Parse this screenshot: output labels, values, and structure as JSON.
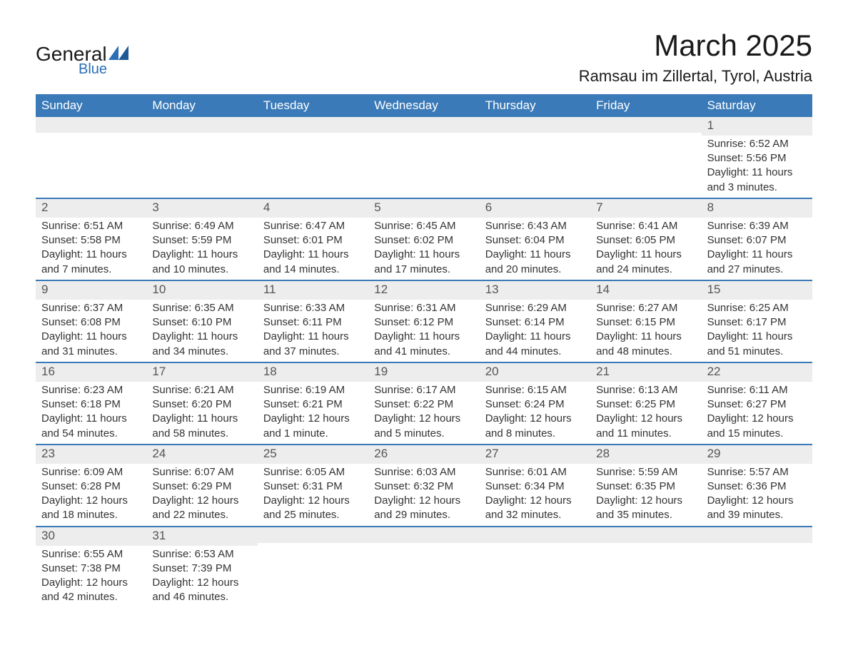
{
  "brand": {
    "word1": "General",
    "word2": "Blue",
    "icon_color": "#2a6fb5",
    "text_color": "#1a1a1a"
  },
  "title": "March 2025",
  "location": "Ramsau im Zillertal, Tyrol, Austria",
  "colors": {
    "header_bg": "#3a7ab8",
    "header_text": "#ffffff",
    "daynum_bg": "#ededed",
    "daynum_text": "#555555",
    "body_text": "#333333",
    "border": "#3a7ab8",
    "page_bg": "#ffffff"
  },
  "typography": {
    "title_fontsize": 42,
    "location_fontsize": 22,
    "header_fontsize": 17,
    "daynum_fontsize": 17,
    "cell_fontsize": 15
  },
  "day_names": [
    "Sunday",
    "Monday",
    "Tuesday",
    "Wednesday",
    "Thursday",
    "Friday",
    "Saturday"
  ],
  "weeks": [
    [
      {
        "day": ""
      },
      {
        "day": ""
      },
      {
        "day": ""
      },
      {
        "day": ""
      },
      {
        "day": ""
      },
      {
        "day": ""
      },
      {
        "day": "1",
        "sunrise": "Sunrise: 6:52 AM",
        "sunset": "Sunset: 5:56 PM",
        "daylight1": "Daylight: 11 hours",
        "daylight2": "and 3 minutes."
      }
    ],
    [
      {
        "day": "2",
        "sunrise": "Sunrise: 6:51 AM",
        "sunset": "Sunset: 5:58 PM",
        "daylight1": "Daylight: 11 hours",
        "daylight2": "and 7 minutes."
      },
      {
        "day": "3",
        "sunrise": "Sunrise: 6:49 AM",
        "sunset": "Sunset: 5:59 PM",
        "daylight1": "Daylight: 11 hours",
        "daylight2": "and 10 minutes."
      },
      {
        "day": "4",
        "sunrise": "Sunrise: 6:47 AM",
        "sunset": "Sunset: 6:01 PM",
        "daylight1": "Daylight: 11 hours",
        "daylight2": "and 14 minutes."
      },
      {
        "day": "5",
        "sunrise": "Sunrise: 6:45 AM",
        "sunset": "Sunset: 6:02 PM",
        "daylight1": "Daylight: 11 hours",
        "daylight2": "and 17 minutes."
      },
      {
        "day": "6",
        "sunrise": "Sunrise: 6:43 AM",
        "sunset": "Sunset: 6:04 PM",
        "daylight1": "Daylight: 11 hours",
        "daylight2": "and 20 minutes."
      },
      {
        "day": "7",
        "sunrise": "Sunrise: 6:41 AM",
        "sunset": "Sunset: 6:05 PM",
        "daylight1": "Daylight: 11 hours",
        "daylight2": "and 24 minutes."
      },
      {
        "day": "8",
        "sunrise": "Sunrise: 6:39 AM",
        "sunset": "Sunset: 6:07 PM",
        "daylight1": "Daylight: 11 hours",
        "daylight2": "and 27 minutes."
      }
    ],
    [
      {
        "day": "9",
        "sunrise": "Sunrise: 6:37 AM",
        "sunset": "Sunset: 6:08 PM",
        "daylight1": "Daylight: 11 hours",
        "daylight2": "and 31 minutes."
      },
      {
        "day": "10",
        "sunrise": "Sunrise: 6:35 AM",
        "sunset": "Sunset: 6:10 PM",
        "daylight1": "Daylight: 11 hours",
        "daylight2": "and 34 minutes."
      },
      {
        "day": "11",
        "sunrise": "Sunrise: 6:33 AM",
        "sunset": "Sunset: 6:11 PM",
        "daylight1": "Daylight: 11 hours",
        "daylight2": "and 37 minutes."
      },
      {
        "day": "12",
        "sunrise": "Sunrise: 6:31 AM",
        "sunset": "Sunset: 6:12 PM",
        "daylight1": "Daylight: 11 hours",
        "daylight2": "and 41 minutes."
      },
      {
        "day": "13",
        "sunrise": "Sunrise: 6:29 AM",
        "sunset": "Sunset: 6:14 PM",
        "daylight1": "Daylight: 11 hours",
        "daylight2": "and 44 minutes."
      },
      {
        "day": "14",
        "sunrise": "Sunrise: 6:27 AM",
        "sunset": "Sunset: 6:15 PM",
        "daylight1": "Daylight: 11 hours",
        "daylight2": "and 48 minutes."
      },
      {
        "day": "15",
        "sunrise": "Sunrise: 6:25 AM",
        "sunset": "Sunset: 6:17 PM",
        "daylight1": "Daylight: 11 hours",
        "daylight2": "and 51 minutes."
      }
    ],
    [
      {
        "day": "16",
        "sunrise": "Sunrise: 6:23 AM",
        "sunset": "Sunset: 6:18 PM",
        "daylight1": "Daylight: 11 hours",
        "daylight2": "and 54 minutes."
      },
      {
        "day": "17",
        "sunrise": "Sunrise: 6:21 AM",
        "sunset": "Sunset: 6:20 PM",
        "daylight1": "Daylight: 11 hours",
        "daylight2": "and 58 minutes."
      },
      {
        "day": "18",
        "sunrise": "Sunrise: 6:19 AM",
        "sunset": "Sunset: 6:21 PM",
        "daylight1": "Daylight: 12 hours",
        "daylight2": "and 1 minute."
      },
      {
        "day": "19",
        "sunrise": "Sunrise: 6:17 AM",
        "sunset": "Sunset: 6:22 PM",
        "daylight1": "Daylight: 12 hours",
        "daylight2": "and 5 minutes."
      },
      {
        "day": "20",
        "sunrise": "Sunrise: 6:15 AM",
        "sunset": "Sunset: 6:24 PM",
        "daylight1": "Daylight: 12 hours",
        "daylight2": "and 8 minutes."
      },
      {
        "day": "21",
        "sunrise": "Sunrise: 6:13 AM",
        "sunset": "Sunset: 6:25 PM",
        "daylight1": "Daylight: 12 hours",
        "daylight2": "and 11 minutes."
      },
      {
        "day": "22",
        "sunrise": "Sunrise: 6:11 AM",
        "sunset": "Sunset: 6:27 PM",
        "daylight1": "Daylight: 12 hours",
        "daylight2": "and 15 minutes."
      }
    ],
    [
      {
        "day": "23",
        "sunrise": "Sunrise: 6:09 AM",
        "sunset": "Sunset: 6:28 PM",
        "daylight1": "Daylight: 12 hours",
        "daylight2": "and 18 minutes."
      },
      {
        "day": "24",
        "sunrise": "Sunrise: 6:07 AM",
        "sunset": "Sunset: 6:29 PM",
        "daylight1": "Daylight: 12 hours",
        "daylight2": "and 22 minutes."
      },
      {
        "day": "25",
        "sunrise": "Sunrise: 6:05 AM",
        "sunset": "Sunset: 6:31 PM",
        "daylight1": "Daylight: 12 hours",
        "daylight2": "and 25 minutes."
      },
      {
        "day": "26",
        "sunrise": "Sunrise: 6:03 AM",
        "sunset": "Sunset: 6:32 PM",
        "daylight1": "Daylight: 12 hours",
        "daylight2": "and 29 minutes."
      },
      {
        "day": "27",
        "sunrise": "Sunrise: 6:01 AM",
        "sunset": "Sunset: 6:34 PM",
        "daylight1": "Daylight: 12 hours",
        "daylight2": "and 32 minutes."
      },
      {
        "day": "28",
        "sunrise": "Sunrise: 5:59 AM",
        "sunset": "Sunset: 6:35 PM",
        "daylight1": "Daylight: 12 hours",
        "daylight2": "and 35 minutes."
      },
      {
        "day": "29",
        "sunrise": "Sunrise: 5:57 AM",
        "sunset": "Sunset: 6:36 PM",
        "daylight1": "Daylight: 12 hours",
        "daylight2": "and 39 minutes."
      }
    ],
    [
      {
        "day": "30",
        "sunrise": "Sunrise: 6:55 AM",
        "sunset": "Sunset: 7:38 PM",
        "daylight1": "Daylight: 12 hours",
        "daylight2": "and 42 minutes."
      },
      {
        "day": "31",
        "sunrise": "Sunrise: 6:53 AM",
        "sunset": "Sunset: 7:39 PM",
        "daylight1": "Daylight: 12 hours",
        "daylight2": "and 46 minutes."
      },
      {
        "day": ""
      },
      {
        "day": ""
      },
      {
        "day": ""
      },
      {
        "day": ""
      },
      {
        "day": ""
      }
    ]
  ]
}
